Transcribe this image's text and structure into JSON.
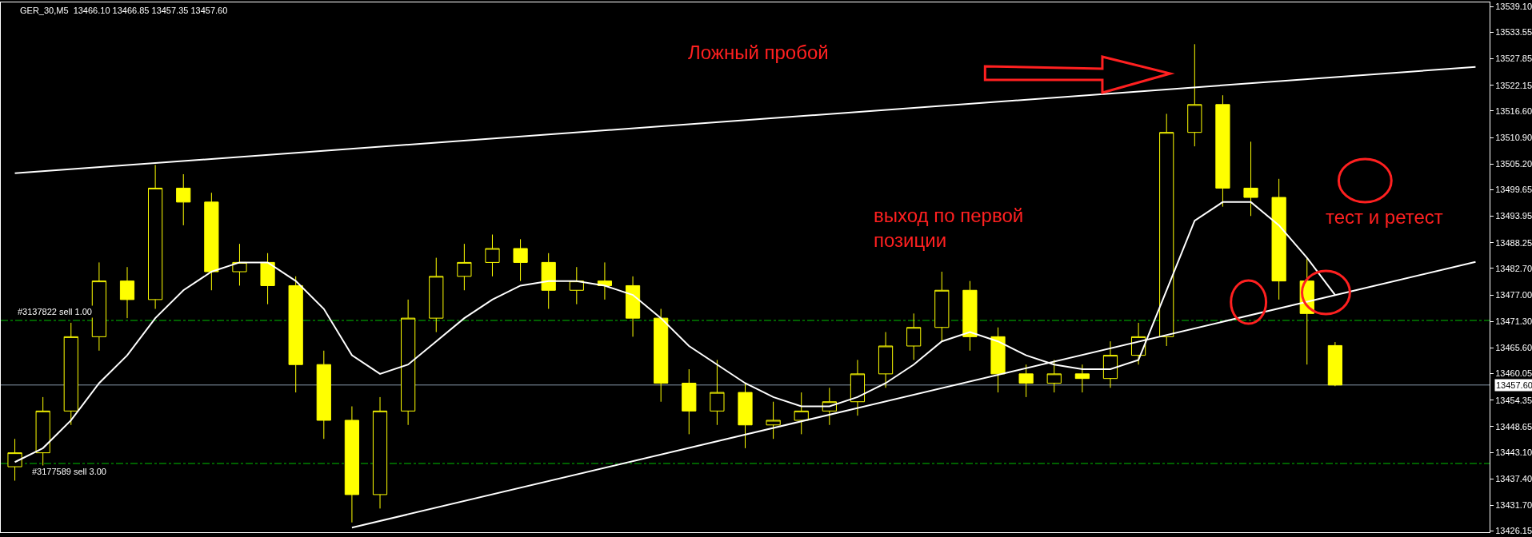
{
  "chart_data": {
    "type": "candlestick",
    "title": "GER_30,M5  13466.10 13466.85 13457.35 13457.60",
    "annotations": [
      "Ложный пробой",
      "выход по первой\nпозиции",
      "тест и ретест"
    ],
    "categories": [
      null,
      null,
      null,
      null,
      null,
      null,
      null,
      null,
      null,
      null,
      null,
      null,
      null,
      null,
      null,
      null,
      null,
      null,
      null,
      null,
      null,
      null,
      null,
      null,
      null,
      null,
      null,
      null,
      null,
      null,
      null,
      null,
      null,
      null,
      null,
      null,
      null,
      null,
      null,
      null,
      null,
      null,
      null,
      null,
      null,
      null,
      null,
      null,
      null,
      null,
      null,
      null,
      null
    ],
    "color": "#ffff00",
    "ohlc": [
      [
        13440,
        13446,
        13437,
        13443
      ],
      [
        13443,
        13455,
        13440,
        13452
      ],
      [
        13452,
        13471,
        13449,
        13468
      ],
      [
        13468,
        13484,
        13465,
        13480
      ],
      [
        13480,
        13483,
        13472,
        13476
      ],
      [
        13476,
        13505,
        13474,
        13500
      ],
      [
        13500,
        13503,
        13492,
        13497
      ],
      [
        13497,
        13499,
        13478,
        13482
      ],
      [
        13482,
        13488,
        13479,
        13484
      ],
      [
        13484,
        13486,
        13475,
        13479
      ],
      [
        13479,
        13481,
        13456,
        13462
      ],
      [
        13462,
        13465,
        13446,
        13450
      ],
      [
        13450,
        13453,
        13428,
        13434
      ],
      [
        13434,
        13455,
        13431,
        13452
      ],
      [
        13452,
        13476,
        13449,
        13472
      ],
      [
        13472,
        13485,
        13469,
        13481
      ],
      [
        13481,
        13488,
        13478,
        13484
      ],
      [
        13484,
        13490,
        13481,
        13487
      ],
      [
        13487,
        13489,
        13480,
        13484
      ],
      [
        13484,
        13486,
        13474,
        13478
      ],
      [
        13478,
        13483,
        13475,
        13480
      ],
      [
        13480,
        13484,
        13476,
        13479
      ],
      [
        13479,
        13481,
        13468,
        13472
      ],
      [
        13472,
        13474,
        13454,
        13458
      ],
      [
        13458,
        13461,
        13447,
        13452
      ],
      [
        13452,
        13463,
        13449,
        13456
      ],
      [
        13456,
        13458,
        13444,
        13449
      ],
      [
        13449,
        13454,
        13446,
        13450
      ],
      [
        13450,
        13456,
        13447,
        13452
      ],
      [
        13452,
        13457,
        13449,
        13454
      ],
      [
        13454,
        13463,
        13451,
        13460
      ],
      [
        13460,
        13469,
        13457,
        13466
      ],
      [
        13466,
        13473,
        13463,
        13470
      ],
      [
        13470,
        13482,
        13467,
        13478
      ],
      [
        13478,
        13480,
        13465,
        13468
      ],
      [
        13468,
        13470,
        13456,
        13460
      ],
      [
        13460,
        13462,
        13455,
        13458
      ],
      [
        13458,
        13463,
        13456,
        13460
      ],
      [
        13460,
        13462,
        13456,
        13459
      ],
      [
        13459,
        13467,
        13457,
        13464
      ],
      [
        13464,
        13471,
        13462,
        13468
      ],
      [
        13468,
        13516,
        13466,
        13512
      ],
      [
        13512,
        13531,
        13509,
        13518
      ],
      [
        13518,
        13520,
        13496,
        13500
      ],
      [
        13500,
        13510,
        13494,
        13498
      ],
      [
        13498,
        13502,
        13476,
        13480
      ],
      [
        13480,
        13485,
        13462,
        13473
      ],
      [
        13466.1,
        13466.85,
        13457.35,
        13457.6
      ],
      null,
      null,
      null,
      null,
      null
    ],
    "series": [
      {
        "type": "line",
        "color": "#ffffff",
        "values": [
          13441,
          13444,
          13450,
          13458,
          13464,
          13472,
          13478,
          13482,
          13484,
          13484,
          13480,
          13474,
          13464,
          13460,
          13462,
          13467,
          13472,
          13476,
          13479,
          13480,
          13480,
          13479,
          13477,
          13472,
          13466,
          13462,
          13458,
          13455,
          13453,
          13453,
          13455,
          13458,
          13462,
          13467,
          13469,
          13467,
          13464,
          13462,
          13461,
          13461,
          13463,
          13478,
          13493,
          13497,
          13497,
          13492,
          13485,
          13477,
          null,
          null,
          null,
          null,
          null
        ]
      },
      {
        "type": "line",
        "color": "#ffffff",
        "values": [
          13503.2,
          null,
          null,
          null,
          null,
          null,
          null,
          null,
          null,
          null,
          null,
          null,
          null,
          null,
          null,
          null,
          null,
          null,
          null,
          null,
          null,
          null,
          null,
          null,
          null,
          null,
          null,
          null,
          null,
          null,
          null,
          null,
          null,
          null,
          null,
          null,
          null,
          null,
          null,
          null,
          null,
          null,
          null,
          null,
          null,
          null,
          null,
          null,
          null,
          null,
          null,
          null,
          13526.1
        ]
      },
      {
        "type": "line",
        "color": "#ffffff",
        "values": [
          null,
          null,
          null,
          null,
          null,
          null,
          null,
          null,
          null,
          null,
          null,
          null,
          13426.9,
          null,
          null,
          null,
          null,
          null,
          null,
          null,
          null,
          null,
          null,
          null,
          null,
          null,
          null,
          null,
          null,
          null,
          null,
          null,
          null,
          null,
          null,
          null,
          null,
          null,
          null,
          null,
          null,
          null,
          null,
          null,
          null,
          null,
          null,
          null,
          null,
          null,
          null,
          null,
          13484.1
        ]
      }
    ],
    "ylim": [
      13425.9,
      13540.0
    ],
    "yticks": [
      {
        "value": 13539.1,
        "label": "13539.10"
      },
      {
        "value": 13533.55,
        "label": "13533.55"
      },
      {
        "value": 13527.85,
        "label": "13527.85"
      },
      {
        "value": 13522.15,
        "label": "13522.15"
      },
      {
        "value": 13516.6,
        "label": "13516.60"
      },
      {
        "value": 13510.9,
        "label": "13510.90"
      },
      {
        "value": 13505.2,
        "label": "13505.20"
      },
      {
        "value": 13499.65,
        "label": "13499.65"
      },
      {
        "value": 13493.95,
        "label": "13493.95"
      },
      {
        "value": 13488.25,
        "label": "13488.25"
      },
      {
        "value": 13482.7,
        "label": "13482.70"
      },
      {
        "value": 13477.0,
        "label": "13477.00"
      },
      {
        "value": 13471.3,
        "label": "13471.30"
      },
      {
        "value": 13465.6,
        "label": "13465.60"
      },
      {
        "value": 13460.05,
        "label": "13460.05"
      },
      {
        "value": 13454.35,
        "label": "13454.35"
      },
      {
        "value": 13448.65,
        "label": "13448.65"
      },
      {
        "value": 13443.1,
        "label": "13443.10"
      },
      {
        "value": 13437.4,
        "label": "13437.40"
      },
      {
        "value": 13431.7,
        "label": "13431.70"
      },
      {
        "value": 13426.15,
        "label": "13426.15"
      }
    ],
    "ref_lines": [
      {
        "axis": "y",
        "value": 13471.5,
        "label": "#3137822 sell 1.00",
        "color": "#00c000",
        "line_style": "dashed"
      },
      {
        "axis": "y",
        "value": 13440.7,
        "label": "#3177589 sell 3.00",
        "color": "#00c000",
        "line_style": "dashed"
      },
      {
        "axis": "y",
        "value": 13457.6,
        "label": "13457.60",
        "color": "#8899aa",
        "line_style": "solid"
      }
    ],
    "grid": false,
    "tick_labels": "y"
  }
}
